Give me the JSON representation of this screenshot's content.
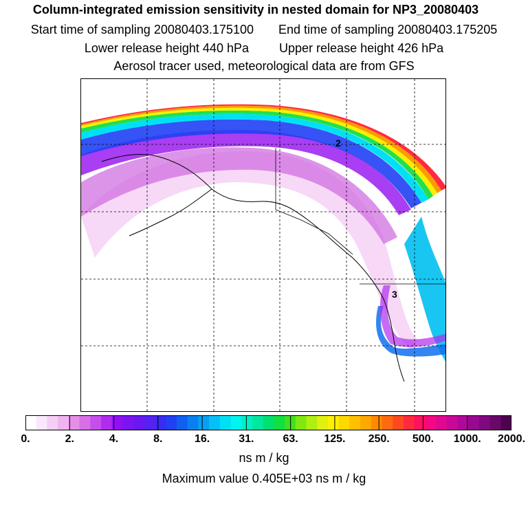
{
  "header": {
    "title": "Column-integrated emission sensitivity in nested domain for NP3_20080403",
    "start_time": "Start time of sampling 20080403.175100",
    "end_time": "End time of sampling 20080403.175205",
    "lower_release": "Lower release height  440 hPa",
    "upper_release": "Upper release height  426 hPa",
    "tracer_info": "Aerosol tracer used, meteorological data are from GFS"
  },
  "map": {
    "markers": [
      {
        "label": "2"
      },
      {
        "label": "3"
      }
    ]
  },
  "colorbar": {
    "tick_labels": [
      "0.",
      "2.",
      "4.",
      "8.",
      "16.",
      "31.",
      "63.",
      "125.",
      "250.",
      "500.",
      "1000.",
      "2000."
    ],
    "colors": [
      "#ffffff",
      "#fbe7fb",
      "#f5cdf5",
      "#efb3ef",
      "#e68fe6",
      "#d86fe8",
      "#c64fec",
      "#b02cef",
      "#9010f2",
      "#7a14f0",
      "#6a18f2",
      "#5522f2",
      "#3a2cf2",
      "#2040f4",
      "#1060f0",
      "#0a80f0",
      "#08a0f2",
      "#05c0f4",
      "#00e0f5",
      "#00f4f0",
      "#00f0c8",
      "#00e8a0",
      "#00e070",
      "#10e040",
      "#40e020",
      "#80e810",
      "#b0f010",
      "#e0f010",
      "#fff000",
      "#ffd800",
      "#ffc000",
      "#ffa800",
      "#ff8a00",
      "#ff6a10",
      "#ff4a20",
      "#ff2a40",
      "#ff1060",
      "#f50880",
      "#e00890",
      "#c80898",
      "#b0089a",
      "#980890",
      "#800880",
      "#6a0868",
      "#500050"
    ],
    "units": "ns m / kg",
    "max_value_text": "Maximum value  0.405E+03 ns m / kg"
  }
}
